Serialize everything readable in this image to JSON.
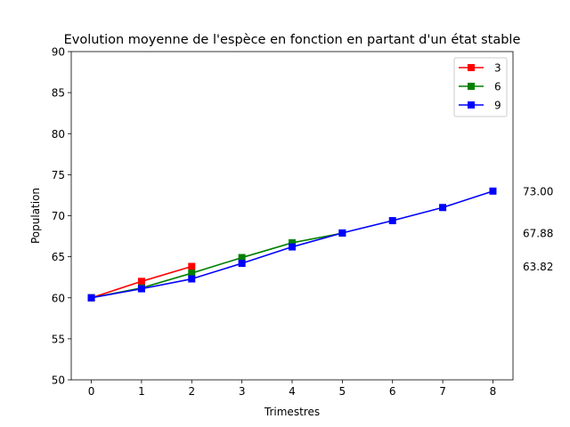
{
  "chart_data": {
    "type": "line",
    "title": "Evolution moyenne de l'espèce en fonction en partant d'un état stable",
    "xlabel": "Trimestres",
    "ylabel": "Population",
    "xlim": [
      -0.4,
      8.4
    ],
    "ylim": [
      50,
      90
    ],
    "x_ticks": [
      "0",
      "1",
      "2",
      "3",
      "4",
      "5",
      "6",
      "7",
      "8"
    ],
    "y_ticks": [
      "50",
      "55",
      "60",
      "65",
      "70",
      "75",
      "80",
      "85",
      "90"
    ],
    "grid": false,
    "legend_position": "top-right",
    "series": [
      {
        "name": "3",
        "color": "#ff0000",
        "marker": "square",
        "x": [
          0,
          1,
          2
        ],
        "y": [
          60.0,
          62.0,
          63.82
        ]
      },
      {
        "name": "6",
        "color": "#008000",
        "marker": "square",
        "x": [
          0,
          1,
          2,
          3,
          4,
          5
        ],
        "y": [
          60.0,
          61.2,
          63.0,
          64.9,
          66.7,
          67.88
        ]
      },
      {
        "name": "9",
        "color": "#0000ff",
        "marker": "square",
        "x": [
          0,
          1,
          2,
          3,
          4,
          5,
          6,
          7,
          8
        ],
        "y": [
          60.0,
          61.1,
          62.3,
          64.2,
          66.2,
          67.9,
          69.4,
          71.0,
          73.0
        ]
      }
    ],
    "annotations": [
      {
        "text": "73.00",
        "y": 73.0
      },
      {
        "text": "67.88",
        "y": 67.88
      },
      {
        "text": "63.82",
        "y": 63.82
      }
    ]
  }
}
